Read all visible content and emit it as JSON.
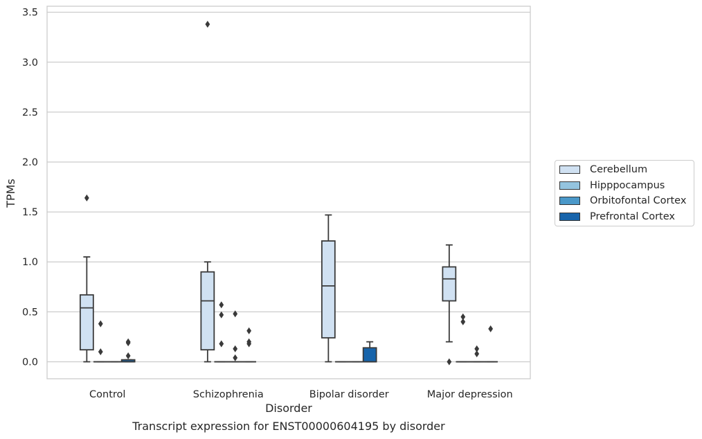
{
  "chart_data": {
    "type": "box",
    "xlabel": "Disorder",
    "ylabel": "TPMs",
    "caption": "Transcript expression for ENST00000604195 by disorder",
    "ylim": [
      -0.17,
      3.56
    ],
    "yticks": [
      "0.0",
      "0.5",
      "1.0",
      "1.5",
      "2.0",
      "2.5",
      "3.0",
      "3.5"
    ],
    "ytick_values": [
      0,
      0.5,
      1.0,
      1.5,
      2.0,
      2.5,
      3.0,
      3.5
    ],
    "categories": [
      "Control",
      "Schizophrenia",
      "Bipolar disorder",
      "Major depression"
    ],
    "grid": true,
    "legend_position": "right",
    "series": [
      {
        "name": "Cerebellum",
        "color": "#d0e1f2",
        "boxes": [
          {
            "whislo": 0,
            "q1": 0.12,
            "med": 0.54,
            "q3": 0.67,
            "whishi": 1.05,
            "fliers": [
              1.64
            ]
          },
          {
            "whislo": 0,
            "q1": 0.12,
            "med": 0.61,
            "q3": 0.9,
            "whishi": 1.0,
            "fliers": [
              3.38
            ]
          },
          {
            "whislo": 0,
            "q1": 0.24,
            "med": 0.76,
            "q3": 1.21,
            "whishi": 1.47,
            "fliers": []
          },
          {
            "whislo": 0.2,
            "q1": 0.61,
            "med": 0.83,
            "q3": 0.95,
            "whishi": 1.17,
            "fliers": [
              0.0
            ]
          }
        ]
      },
      {
        "name": "Hipppocampus",
        "color": "#94c4df",
        "boxes": [
          {
            "whislo": 0,
            "q1": 0,
            "med": 0,
            "q3": 0,
            "whishi": 0,
            "fliers": [
              0.38,
              0.1
            ]
          },
          {
            "whislo": 0,
            "q1": 0,
            "med": 0,
            "q3": 0,
            "whishi": 0,
            "fliers": [
              0.57,
              0.47,
              0.18
            ]
          },
          {
            "whislo": 0,
            "q1": 0,
            "med": 0,
            "q3": 0,
            "whishi": 0,
            "fliers": []
          },
          {
            "whislo": 0,
            "q1": 0,
            "med": 0,
            "q3": 0,
            "whishi": 0,
            "fliers": [
              0.45,
              0.4
            ]
          }
        ]
      },
      {
        "name": "Orbitofontal Cortex",
        "color": "#4a98c9",
        "boxes": [
          {
            "whislo": 0,
            "q1": 0,
            "med": 0,
            "q3": 0,
            "whishi": 0,
            "fliers": []
          },
          {
            "whislo": 0,
            "q1": 0,
            "med": 0,
            "q3": 0,
            "whishi": 0,
            "fliers": [
              0.48,
              0.13,
              0.04
            ]
          },
          {
            "whislo": 0,
            "q1": 0,
            "med": 0,
            "q3": 0,
            "whishi": 0,
            "fliers": []
          },
          {
            "whislo": 0,
            "q1": 0,
            "med": 0,
            "q3": 0,
            "whishi": 0,
            "fliers": [
              0.13,
              0.08
            ]
          }
        ]
      },
      {
        "name": "Prefrontal Cortex",
        "color": "#1764ab",
        "boxes": [
          {
            "whislo": 0,
            "q1": 0,
            "med": 0,
            "q3": 0.02,
            "whishi": 0.02,
            "fliers": [
              0.2,
              0.19,
              0.06
            ]
          },
          {
            "whislo": 0,
            "q1": 0,
            "med": 0,
            "q3": 0,
            "whishi": 0,
            "fliers": [
              0.31,
              0.2,
              0.18
            ]
          },
          {
            "whislo": 0,
            "q1": 0,
            "med": 0,
            "q3": 0.14,
            "whishi": 0.2,
            "fliers": []
          },
          {
            "whislo": 0,
            "q1": 0,
            "med": 0,
            "q3": 0,
            "whishi": 0,
            "fliers": [
              0.33
            ]
          }
        ]
      }
    ]
  }
}
